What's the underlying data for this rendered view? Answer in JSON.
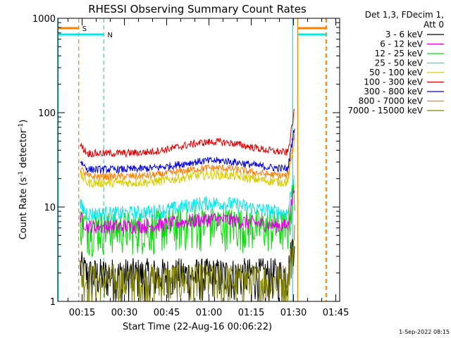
{
  "chart_data": {
    "type": "line",
    "title": "RHESSI Observing Summary Count Rates",
    "xlabel": "Start Time (22-Aug-16 00:06:22)",
    "ylabel_main": "Count Rate (s",
    "ylabel_sup1": "-1",
    "ylabel_mid": " detector",
    "ylabel_sup2": "-1",
    "ylabel_end": ")",
    "yscale": "log",
    "ylim": [
      1,
      1000
    ],
    "xlim_minutes": [
      6.37,
      106.37
    ],
    "x_ticks": [
      {
        "minutes": 15,
        "label": "00:15"
      },
      {
        "minutes": 30,
        "label": "00:30"
      },
      {
        "minutes": 45,
        "label": "00:45"
      },
      {
        "minutes": 60,
        "label": "01:00"
      },
      {
        "minutes": 75,
        "label": "01:15"
      },
      {
        "minutes": 90,
        "label": "01:30"
      },
      {
        "minutes": 105,
        "label": "01:45"
      }
    ],
    "y_ticks": [
      {
        "value": 1,
        "label": "1"
      },
      {
        "value": 10,
        "label": "10"
      },
      {
        "value": 100,
        "label": "100"
      },
      {
        "value": 1000,
        "label": "1000"
      }
    ],
    "legend_title_line1": "Det 1,3, FDecim 1,",
    "legend_title_line2": "Att 0",
    "legend_placement": "right",
    "series": [
      {
        "name": "3 - 6 keV",
        "color": "#000000",
        "base": 1.6,
        "bump": 0.0,
        "noise": 0.35
      },
      {
        "name": "6 - 12 keV",
        "color": "#e000e0",
        "base": 6.2,
        "bump": 1.2,
        "noise": 0.08
      },
      {
        "name": "12 - 25 keV",
        "color": "#00e000",
        "base": 5.0,
        "bump": 0.6,
        "noise": 0.22
      },
      {
        "name": "25 - 50 keV",
        "color": "#00e8e8",
        "base": 8.5,
        "bump": 2.5,
        "noise": 0.08
      },
      {
        "name": "50 - 100 keV",
        "color": "#d8cc00",
        "base": 18.0,
        "bump": 4.0,
        "noise": 0.05
      },
      {
        "name": "100 - 300 keV",
        "color": "#e00000",
        "base": 37.0,
        "bump": 12.0,
        "noise": 0.04
      },
      {
        "name": "300 - 800 keV",
        "color": "#0000e0",
        "base": 25.0,
        "bump": 6.0,
        "noise": 0.04
      },
      {
        "name": "800 - 7000 keV",
        "color": "#ff8000",
        "base": 21.0,
        "bump": 5.0,
        "noise": 0.04
      },
      {
        "name": "7000 - 15000 keV",
        "color": "#808000",
        "base": 1.4,
        "bump": 0.0,
        "noise": 0.3
      }
    ],
    "data_window_minutes": [
      14.3,
      90.4
    ],
    "night_start_minutes": 13.8,
    "night_end_minutes": 91.5,
    "saa_start_minutes": 22.7,
    "saa_end_minutes": 89.7,
    "second_end_minutes": 101.5,
    "flag_s_label": "S",
    "flag_n_label": "N",
    "flag_s_color": "#ff8000",
    "flag_n_color": "#00e8e8"
  },
  "footer": {
    "timestamp": "1-Sep-2022 08:15"
  }
}
